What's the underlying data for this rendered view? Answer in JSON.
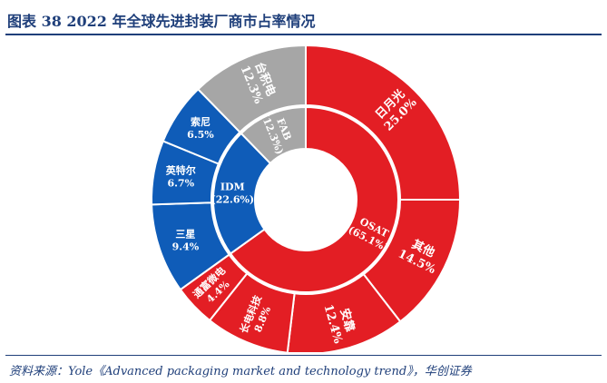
{
  "header": {
    "title": "图表 38   2022 年全球先进封装厂商市占率情况"
  },
  "footer": {
    "source": "资料来源：Yole《Advanced packaging market and technology trend》，华创证券"
  },
  "colors": {
    "OSAT": "#e31e24",
    "IDM": "#0f5cb8",
    "FAB": "#a6a6a6",
    "border": "#ffffff",
    "text": "#ffffff"
  },
  "chart_data": {
    "type": "sunburst",
    "title": "2022 年全球先进封装厂商市占率情况",
    "inner": [
      {
        "name": "OSAT",
        "label": "OSAT",
        "value": 65.1,
        "value_label": "(65.1%)",
        "color": "#e31e24"
      },
      {
        "name": "IDM",
        "label": "IDM",
        "value": 22.6,
        "value_label": "(22.6%)",
        "color": "#0f5cb8"
      },
      {
        "name": "FAB",
        "label": "FAB",
        "value": 12.3,
        "value_label": "(12.3%)",
        "color": "#a6a6a6"
      }
    ],
    "outer": [
      {
        "name": "日月光",
        "value": 25.0,
        "value_label": "25.0%",
        "parent": "OSAT"
      },
      {
        "name": "其他",
        "value": 14.5,
        "value_label": "14.5%",
        "parent": "OSAT"
      },
      {
        "name": "安靠",
        "value": 12.4,
        "value_label": "12.4%",
        "parent": "OSAT"
      },
      {
        "name": "长电科技",
        "value": 8.8,
        "value_label": "8.8%",
        "parent": "OSAT"
      },
      {
        "name": "通富微电",
        "value": 4.4,
        "value_label": "4.4%",
        "parent": "OSAT"
      },
      {
        "name": "三星",
        "value": 9.4,
        "value_label": "9.4%",
        "parent": "IDM"
      },
      {
        "name": "英特尔",
        "value": 6.7,
        "value_label": "6.7%",
        "parent": "IDM"
      },
      {
        "name": "索尼",
        "value": 6.5,
        "value_label": "6.5%",
        "parent": "IDM"
      },
      {
        "name": "台积电",
        "value": 12.3,
        "value_label": "12.3%",
        "parent": "FAB"
      }
    ]
  }
}
